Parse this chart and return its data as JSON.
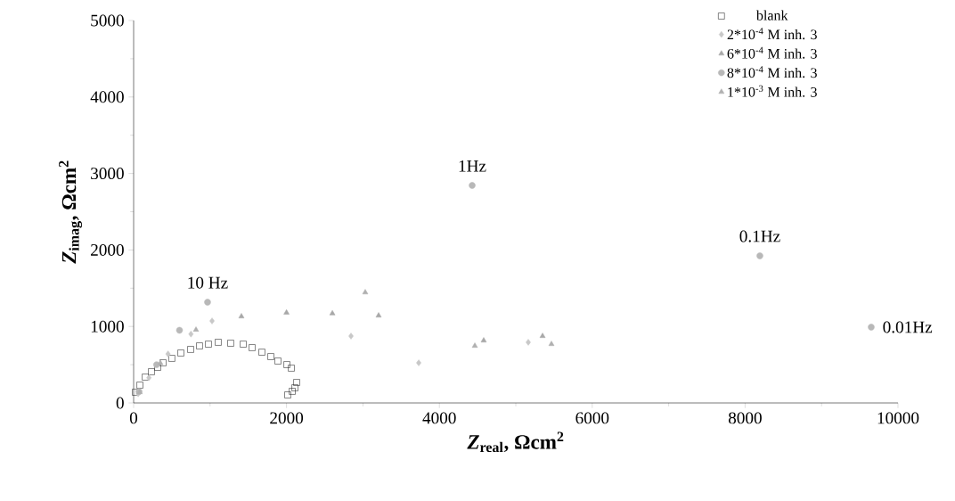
{
  "chart_data": {
    "type": "scatter",
    "xlabel": "*Z*$_{real}$, Ωcm$^{2}$",
    "ylabel": "*Z*$_{imag}$, Ωcm$^{2}$",
    "xlim": [
      0,
      10000
    ],
    "ylim": [
      0,
      5000
    ],
    "xticks": [
      0,
      2000,
      4000,
      6000,
      8000,
      10000
    ],
    "yticks": [
      0,
      1000,
      2000,
      3000,
      4000,
      5000
    ],
    "grid": false,
    "legend": "top right",
    "series": [
      {
        "name": "blank",
        "color": "#1a1a1a",
        "marker": "square",
        "x": [
          23,
          82,
          152,
          233,
          315,
          385,
          500,
          618,
          746,
          862,
          979,
          1107,
          1270,
          1434,
          1550,
          1678,
          1795,
          1888,
          2005,
          2063,
          2133,
          2110,
          2075,
          2016
        ],
        "values": [
          140,
          233,
          338,
          408,
          466,
          525,
          583,
          653,
          700,
          746,
          769,
          793,
          781,
          769,
          723,
          664,
          606,
          548,
          501,
          455,
          268,
          198,
          152,
          105
        ]
      },
      {
        "name": "2*10$^{-4}$ M inh. 3",
        "color": "#c8c8c8",
        "marker": "diamond",
        "x": [
          60,
          200,
          450,
          750,
          1026,
          2844,
          3730,
          5163
        ],
        "values": [
          120,
          330,
          640,
          900,
          1072,
          874,
          524,
          793
        ]
      },
      {
        "name": "6*10$^{-4}$ M inh. 3",
        "color": "#a8a8a8",
        "marker": "triangle",
        "x": [
          1410,
          2000,
          2600,
          3205,
          4580,
          5350
        ],
        "values": [
          1131,
          1180,
          1170,
          1142,
          816,
          874
        ]
      },
      {
        "name": "8*10$^{-4}$ M inh. 3",
        "color": "#b8b8b8",
        "marker": "circle",
        "x": [
          70,
          300,
          600,
          967,
          4429,
          8193,
          9650
        ],
        "values": [
          150,
          500,
          950,
          1317,
          2844,
          1923,
          991
        ]
      },
      {
        "name": "1*10$^{-3}$ M inh. 3",
        "color": "#b0b0b0",
        "marker": "triangle",
        "x": [
          80,
          350,
          816,
          3030,
          4464,
          5466
        ],
        "values": [
          140,
          520,
          956,
          1445,
          746,
          769
        ]
      }
    ],
    "annotations": [
      {
        "text": "10 Hz",
        "x": 967,
        "y": 1317
      },
      {
        "text": "1Hz",
        "x": 4429,
        "y": 2844
      },
      {
        "text": "0.1Hz",
        "x": 8193,
        "y": 1923
      },
      {
        "text": "0.01Hz",
        "x": 9650,
        "y": 991
      }
    ]
  }
}
